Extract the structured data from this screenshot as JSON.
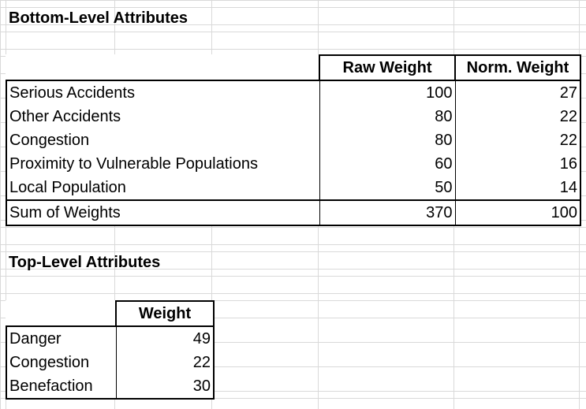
{
  "bottom_section": {
    "title": "Bottom-Level Attributes",
    "headers": {
      "raw_weight": "Raw Weight",
      "norm_weight": "Norm. Weight"
    },
    "rows": [
      {
        "label": "Serious Accidents",
        "raw": "100",
        "norm": "27"
      },
      {
        "label": "Other Accidents",
        "raw": "80",
        "norm": "22"
      },
      {
        "label": "Congestion",
        "raw": "80",
        "norm": "22"
      },
      {
        "label": "Proximity to Vulnerable Populations",
        "raw": "60",
        "norm": "16"
      },
      {
        "label": "Local Population",
        "raw": "50",
        "norm": "14"
      }
    ],
    "sum_row": {
      "label": "Sum of Weights",
      "raw": "370",
      "norm": "100"
    }
  },
  "top_section": {
    "title": "Top-Level Attributes",
    "headers": {
      "weight": "Weight"
    },
    "rows": [
      {
        "label": "Danger",
        "weight": "49"
      },
      {
        "label": "Congestion",
        "weight": "22"
      },
      {
        "label": "Benefaction",
        "weight": "30"
      }
    ]
  }
}
